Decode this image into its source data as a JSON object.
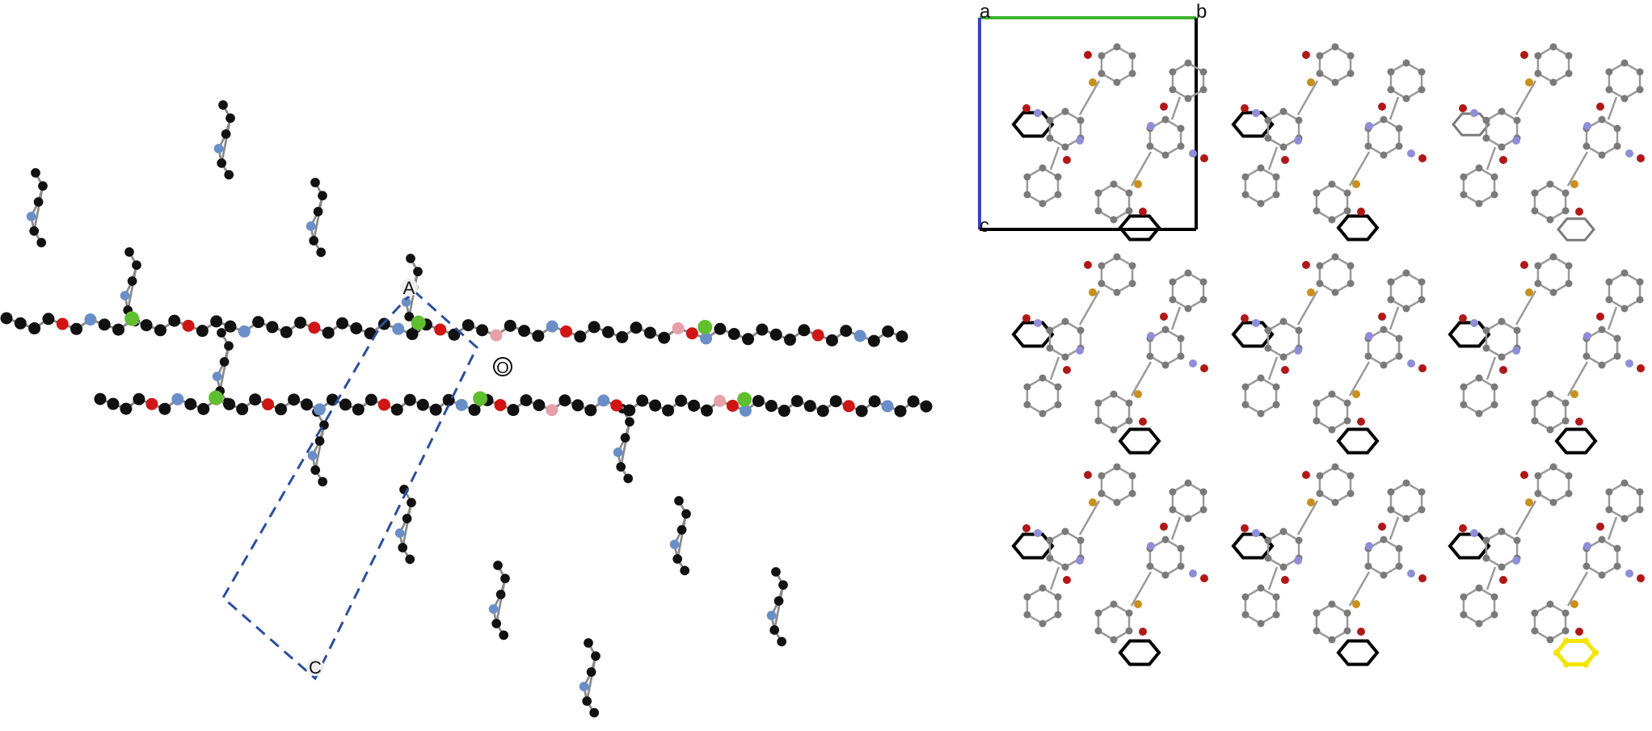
{
  "left_panel": {
    "axis_labels": {
      "a": "A",
      "o": "O",
      "c": "C"
    },
    "colors": {
      "carbon": "#111111",
      "nitrogen": "#6a8fc8",
      "oxygen": "#d01515",
      "metal": "#5fbf2e",
      "boron": "#e8a0a8",
      "bond": "#8a8a8a",
      "cell": "#2b4f9e"
    }
  },
  "right_panel": {
    "axis_labels": {
      "a": "a",
      "b": "b",
      "c": "c"
    },
    "colors": {
      "carbon": "#7a7a7a",
      "nitrogen": "#8e8ed8",
      "oxygen": "#b01818",
      "sulfur": "#c9901c",
      "ring": "#000000",
      "highlight": "#f2e600",
      "axis_a_b": "#3fb52e",
      "axis_c": "#3a43b8",
      "cell": "#000000"
    }
  }
}
